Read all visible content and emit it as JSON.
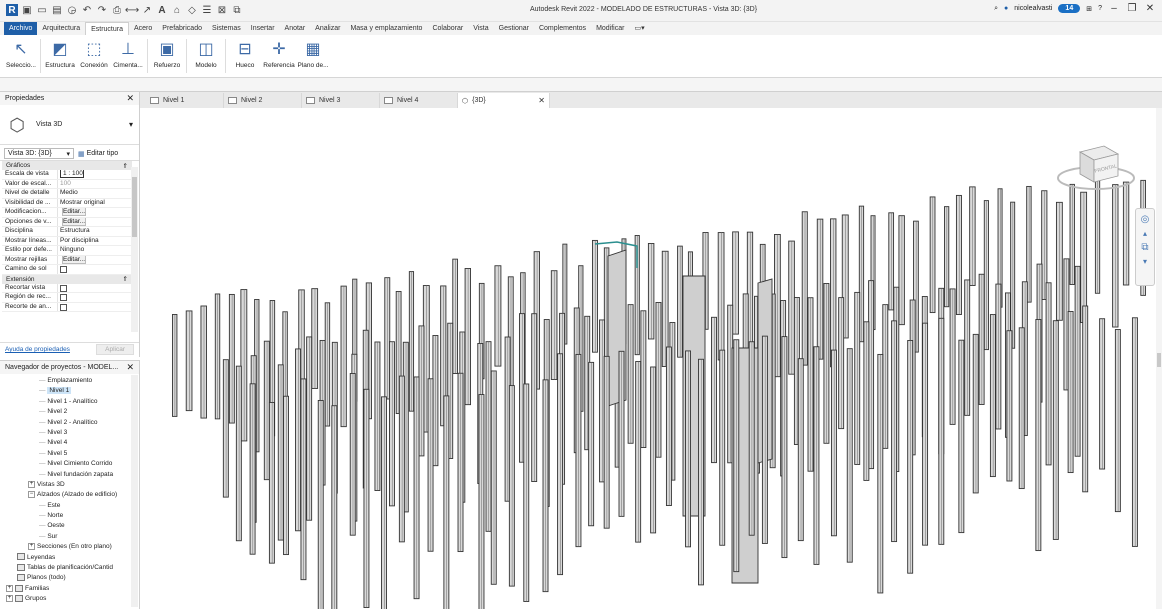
{
  "titlebar": {
    "title": "Autodesk Revit 2022 - MODELADO DE ESTRUCTURAS - Vista 3D: {3D}",
    "user": "nicolealvasti",
    "notifications": "14"
  },
  "ribbon": {
    "tabs": [
      "Archivo",
      "Arquitectura",
      "Estructura",
      "Acero",
      "Prefabricado",
      "Sistemas",
      "Insertar",
      "Anotar",
      "Analizar",
      "Masa y emplazamiento",
      "Colaborar",
      "Vista",
      "Gestionar",
      "Complementos",
      "Modificar"
    ],
    "active_tab": "Estructura",
    "buttons": [
      "Seleccio...",
      "Estructura",
      "Conexión",
      "Cimenta...",
      "Refuerzo",
      "Modelo",
      "Hueco",
      "Referencia",
      "Plano de..."
    ]
  },
  "properties": {
    "header": "Propiedades",
    "type_name": "Vista 3D",
    "instance_selector": "Vista 3D: {3D}",
    "edit_type": "Editar tipo",
    "groups": [
      {
        "name": "Gráficos",
        "rows": [
          {
            "name": "Escala de vista",
            "value": "1 : 100",
            "kind": "box"
          },
          {
            "name": "Valor de escal...",
            "value": "100",
            "kind": "gray"
          },
          {
            "name": "Nivel de detalle",
            "value": "Medio",
            "kind": "text"
          },
          {
            "name": "Visibilidad de ...",
            "value": "Mostrar original",
            "kind": "text"
          },
          {
            "name": "Modificacion...",
            "value": "Editar...",
            "kind": "button"
          },
          {
            "name": "Opciones de v...",
            "value": "Editar...",
            "kind": "button"
          },
          {
            "name": "Disciplina",
            "value": "Estructura",
            "kind": "text"
          },
          {
            "name": "Mostrar líneas...",
            "value": "Por disciplina",
            "kind": "text"
          },
          {
            "name": "Estilo por defe...",
            "value": "Ninguno",
            "kind": "text"
          },
          {
            "name": "Mostrar rejillas",
            "value": "Editar...",
            "kind": "button"
          },
          {
            "name": "Camino de sol",
            "value": "",
            "kind": "check"
          }
        ]
      },
      {
        "name": "Extensión",
        "rows": [
          {
            "name": "Recortar vista",
            "value": "",
            "kind": "check"
          },
          {
            "name": "Región de rec...",
            "value": "",
            "kind": "check"
          },
          {
            "name": "Recorte de an...",
            "value": "",
            "kind": "check"
          }
        ]
      }
    ],
    "help_link": "Ayuda de propiedades",
    "apply": "Aplicar"
  },
  "browser": {
    "header": "Navegador de proyectos - MODEL...",
    "items": [
      {
        "label": "Emplazamiento",
        "indent": 3,
        "type": "leaf",
        "selected": false
      },
      {
        "label": "Nivel 1",
        "indent": 3,
        "type": "leaf",
        "selected": true
      },
      {
        "label": "Nivel 1 - Analítico",
        "indent": 3,
        "type": "leaf",
        "selected": false
      },
      {
        "label": "Nivel 2",
        "indent": 3,
        "type": "leaf",
        "selected": false
      },
      {
        "label": "Nivel 2 - Analítico",
        "indent": 3,
        "type": "leaf",
        "selected": false
      },
      {
        "label": "Nivel 3",
        "indent": 3,
        "type": "leaf",
        "selected": false
      },
      {
        "label": "Nivel 4",
        "indent": 3,
        "type": "leaf",
        "selected": false
      },
      {
        "label": "Nivel 5",
        "indent": 3,
        "type": "leaf",
        "selected": false
      },
      {
        "label": "Nivel Cimiento Corrido",
        "indent": 3,
        "type": "leaf",
        "selected": false
      },
      {
        "label": "Nivel fundación zapata",
        "indent": 3,
        "type": "leaf",
        "selected": false
      },
      {
        "label": "Vistas 3D",
        "indent": 2,
        "type": "collapsed",
        "selected": false
      },
      {
        "label": "Alzados (Alzado de edificio)",
        "indent": 2,
        "type": "expanded",
        "selected": false
      },
      {
        "label": "Este",
        "indent": 3,
        "type": "leaf",
        "selected": false
      },
      {
        "label": "Norte",
        "indent": 3,
        "type": "leaf",
        "selected": false
      },
      {
        "label": "Oeste",
        "indent": 3,
        "type": "leaf",
        "selected": false
      },
      {
        "label": "Sur",
        "indent": 3,
        "type": "leaf",
        "selected": false
      },
      {
        "label": "Secciones (En otro plano)",
        "indent": 2,
        "type": "collapsed",
        "selected": false
      },
      {
        "label": "Leyendas",
        "indent": 1,
        "type": "icon",
        "selected": false
      },
      {
        "label": "Tablas de planificación/Cantid",
        "indent": 1,
        "type": "icon",
        "selected": false
      },
      {
        "label": "Planos (todo)",
        "indent": 1,
        "type": "icon",
        "selected": false
      },
      {
        "label": "Familias",
        "indent": 0,
        "type": "collapsed-icon",
        "selected": false
      },
      {
        "label": "Grupos",
        "indent": 0,
        "type": "collapsed-icon",
        "selected": false
      }
    ]
  },
  "view_tabs": [
    {
      "label": "Nivel 1",
      "active": false
    },
    {
      "label": "Nivel 2",
      "active": false
    },
    {
      "label": "Nivel 3",
      "active": false
    },
    {
      "label": "Nivel 4",
      "active": false
    },
    {
      "label": "{3D}",
      "active": true
    }
  ],
  "viewcube": {
    "label": "FRONTAL"
  },
  "colors": {
    "accent": "#1f5fa8",
    "column_fill": "#d9d9d9",
    "column_edge": "#333333",
    "selection": "#cde4f7"
  }
}
